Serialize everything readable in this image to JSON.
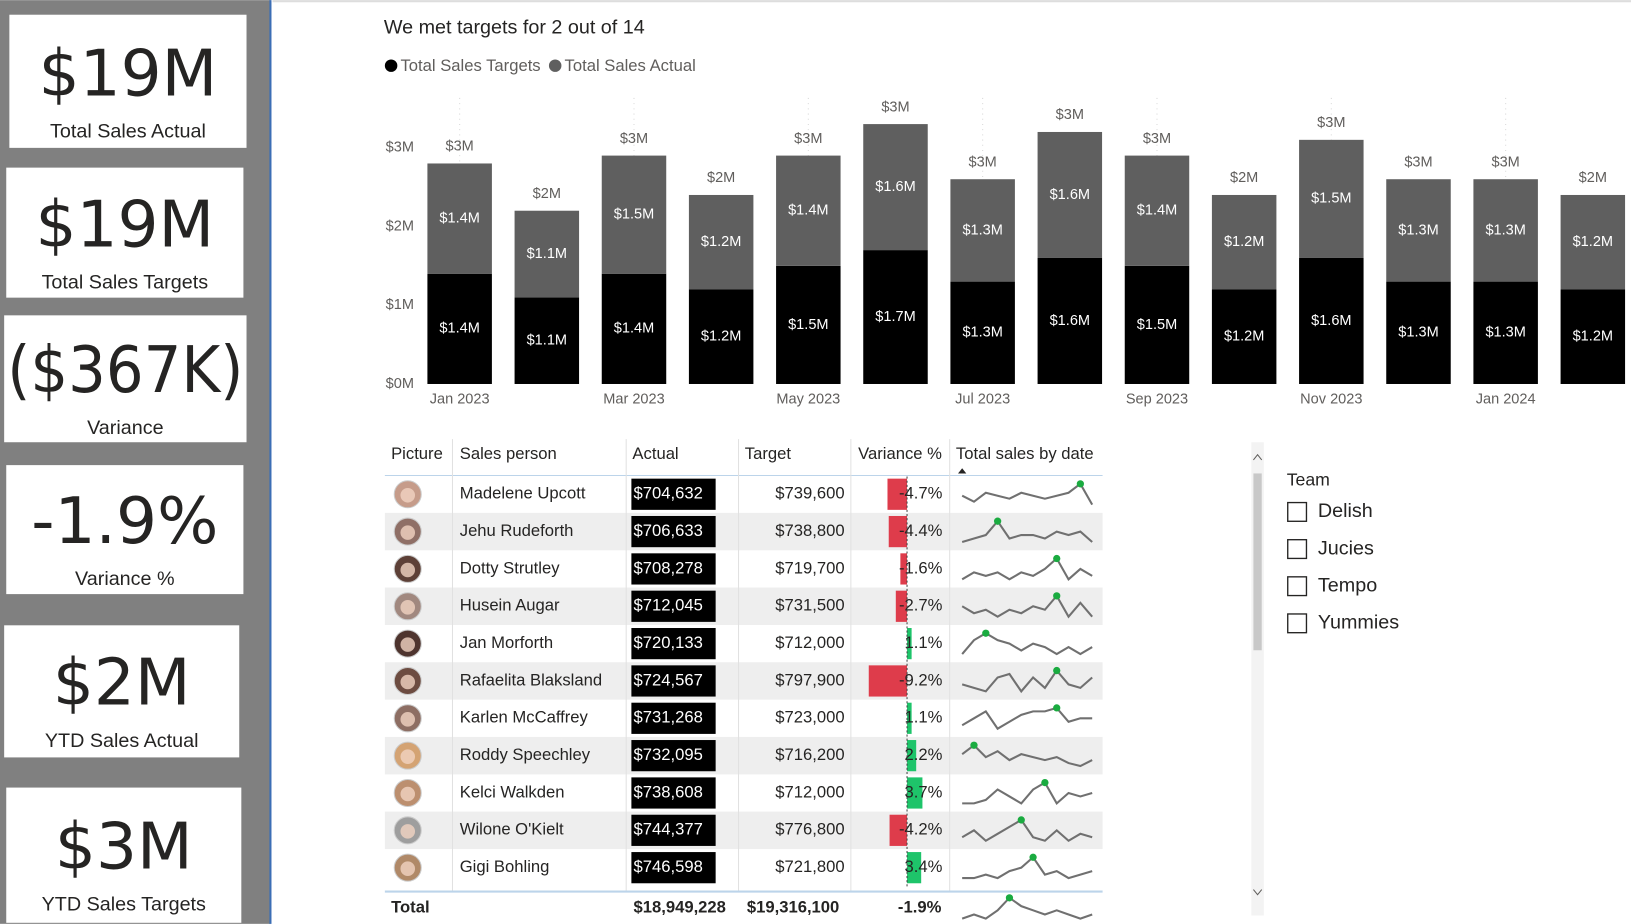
{
  "kpis": [
    {
      "value": "$19M",
      "label": "Total Sales Actual"
    },
    {
      "value": "$19M",
      "label": "Total Sales Targets"
    },
    {
      "value": "($367K)",
      "label": "Variance"
    },
    {
      "value": "-1.9%",
      "label": "Variance %"
    },
    {
      "value": "$2M",
      "label": "YTD Sales Actual"
    },
    {
      "value": "$3M",
      "label": "YTD Sales Targets"
    }
  ],
  "chart_data": {
    "type": "bar",
    "stacked": true,
    "title": "We met targets for 2 out of 14",
    "categories": [
      "Jan 2023",
      null,
      "Mar 2023",
      null,
      "May 2023",
      null,
      "Jul 2023",
      null,
      "Sep 2023",
      null,
      "Nov 2023",
      null,
      "Jan 2024",
      null
    ],
    "series": [
      {
        "name": "Total Sales Targets",
        "color": "#000000",
        "values": [
          1400000,
          1100000,
          1400000,
          1200000,
          1500000,
          1700000,
          1300000,
          1600000,
          1500000,
          1200000,
          1600000,
          1300000,
          1300000,
          1200000
        ],
        "value_labels": [
          "$1.4M",
          "$1.1M",
          "$1.4M",
          "$1.2M",
          "$1.5M",
          "$1.7M",
          "$1.3M",
          "$1.6M",
          "$1.5M",
          "$1.2M",
          "$1.6M",
          "$1.3M",
          "$1.3M",
          "$1.2M"
        ]
      },
      {
        "name": "Total Sales Actual",
        "color": "#5f5f5f",
        "values": [
          1400000,
          1100000,
          1500000,
          1200000,
          1400000,
          1600000,
          1300000,
          1600000,
          1400000,
          1200000,
          1500000,
          1300000,
          1300000,
          1200000
        ],
        "value_labels": [
          "$1.4M",
          "$1.1M",
          "$1.5M",
          "$1.2M",
          "$1.4M",
          "$1.6M",
          "$1.3M",
          "$1.6M",
          "$1.4M",
          "$1.2M",
          "$1.5M",
          "$1.3M",
          "$1.3M",
          "$1.2M"
        ]
      }
    ],
    "totals": [
      2800000,
      2200000,
      2900000,
      2400000,
      2900000,
      3300000,
      2600000,
      3200000,
      2900000,
      2400000,
      3100000,
      2600000,
      2600000,
      2400000
    ],
    "total_labels": [
      "$3M",
      "$2M",
      "$3M",
      "$2M",
      "$3M",
      "$3M",
      "$3M",
      "$3M",
      "$3M",
      "$2M",
      "$3M",
      "$3M",
      "$3M",
      "$2M"
    ],
    "ylim": [
      0,
      3500000
    ],
    "yticks": [
      {
        "value": 0,
        "label": "$0M"
      },
      {
        "value": 1000000,
        "label": "$1M"
      },
      {
        "value": 2000000,
        "label": "$2M"
      },
      {
        "value": 3000000,
        "label": "$3M"
      }
    ],
    "legend": "top-left"
  },
  "table": {
    "columns": [
      "Picture",
      "Sales person",
      "Actual",
      "Target",
      "Variance %",
      "Total sales by date"
    ],
    "rows": [
      {
        "name": "Madelene Upcott",
        "actual": "$704,632",
        "target": "$739,600",
        "variance": -4.7,
        "variance_label": "-4.7%",
        "trend": [
          5,
          3,
          6,
          5,
          4,
          6,
          5,
          4,
          5,
          6,
          9,
          2
        ]
      },
      {
        "name": "Jehu Rudeforth",
        "actual": "$706,633",
        "target": "$738,800",
        "variance": -4.4,
        "variance_label": "-4.4%",
        "trend": [
          3,
          4,
          5,
          9,
          4,
          5,
          5,
          4,
          6,
          5,
          6,
          3
        ]
      },
      {
        "name": "Dotty Strutley",
        "actual": "$708,278",
        "target": "$719,700",
        "variance": -1.6,
        "variance_label": "-1.6%",
        "trend": [
          3,
          5,
          4,
          5,
          3,
          5,
          4,
          6,
          9,
          3,
          6,
          4
        ]
      },
      {
        "name": "Husein Augar",
        "actual": "$712,045",
        "target": "$731,500",
        "variance": -2.7,
        "variance_label": "-2.7%",
        "trend": [
          6,
          4,
          5,
          3,
          5,
          4,
          6,
          5,
          9,
          3,
          7,
          3
        ]
      },
      {
        "name": "Jan Morforth",
        "actual": "$720,133",
        "target": "$712,000",
        "variance": 1.1,
        "variance_label": "1.1%",
        "trend": [
          3,
          7,
          9,
          7,
          6,
          4,
          6,
          5,
          3,
          5,
          3,
          5
        ]
      },
      {
        "name": "Rafaelita Blaksland",
        "actual": "$724,567",
        "target": "$797,900",
        "variance": -9.2,
        "variance_label": "-9.2%",
        "trend": [
          5,
          4,
          3,
          7,
          8,
          3,
          7,
          4,
          9,
          5,
          4,
          7
        ]
      },
      {
        "name": "Karlen McCaffrey",
        "actual": "$731,268",
        "target": "$723,000",
        "variance": 1.1,
        "variance_label": "1.1%",
        "trend": [
          3,
          5,
          7,
          2,
          4,
          6,
          7,
          7,
          8,
          4,
          5,
          5
        ]
      },
      {
        "name": "Roddy Speechley",
        "actual": "$732,095",
        "target": "$716,200",
        "variance": 2.2,
        "variance_label": "2.2%",
        "trend": [
          6,
          9,
          5,
          7,
          4,
          6,
          5,
          4,
          5,
          3,
          2,
          4
        ]
      },
      {
        "name": "Kelci Walkden",
        "actual": "$738,608",
        "target": "$712,000",
        "variance": 3.7,
        "variance_label": "3.7%",
        "trend": [
          3,
          3,
          4,
          7,
          5,
          3,
          7,
          9,
          3,
          6,
          5,
          6
        ]
      },
      {
        "name": "Wilone O'Kielt",
        "actual": "$744,377",
        "target": "$776,800",
        "variance": -4.2,
        "variance_label": "-4.2%",
        "trend": [
          4,
          6,
          3,
          5,
          7,
          9,
          4,
          3,
          6,
          3,
          5,
          4
        ]
      },
      {
        "name": "Gigi Bohling",
        "actual": "$746,598",
        "target": "$721,800",
        "variance": 3.4,
        "variance_label": "3.4%",
        "trend": [
          3,
          3,
          4,
          3,
          5,
          6,
          9,
          4,
          5,
          3,
          4,
          5
        ]
      }
    ],
    "total": {
      "label": "Total",
      "actual": "$18,949,228",
      "target": "$19,316,100",
      "variance_label": "-1.9%",
      "trend": [
        4,
        5,
        4,
        6,
        9,
        7,
        6,
        5,
        6,
        5,
        4,
        5
      ]
    }
  },
  "slicer": {
    "title": "Team",
    "options": [
      "Delish",
      "Jucies",
      "Tempo",
      "Yummies"
    ]
  }
}
